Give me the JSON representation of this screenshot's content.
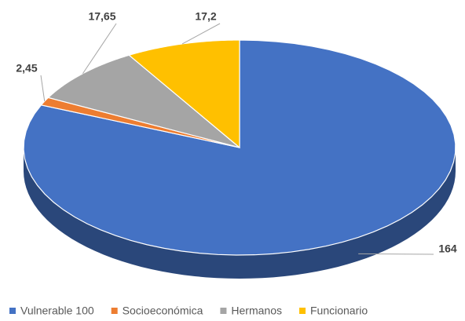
{
  "chart_data": {
    "type": "pie",
    "categories": [
      "Vulnerable 100",
      "Socioeconómica",
      "Hermanos",
      "Funcionario"
    ],
    "values": [
      164,
      2.45,
      17.65,
      17.2
    ],
    "value_labels": [
      "164",
      "2,45",
      "17,65",
      "17,2"
    ],
    "colors": [
      "#4472c4",
      "#ed7d31",
      "#a5a5a5",
      "#ffc000"
    ],
    "legend": "bottom"
  }
}
